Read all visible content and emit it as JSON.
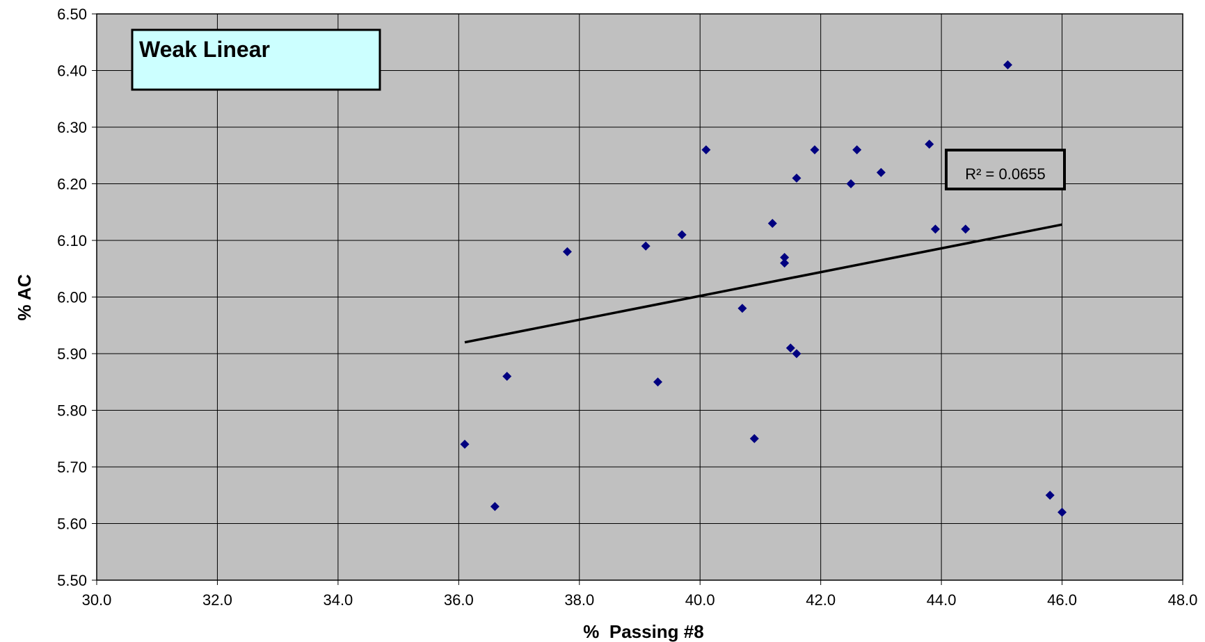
{
  "chart_data": {
    "type": "scatter",
    "title": "",
    "xlabel": "%  Passing #8",
    "ylabel": "% AC",
    "xlim": [
      30.0,
      48.0
    ],
    "ylim": [
      5.5,
      6.5
    ],
    "x_tick_step": 2.0,
    "y_tick_step": 0.1,
    "x_tick_decimals": 1,
    "y_tick_decimals": 2,
    "grid": true,
    "plot_background": "#c0c0c0",
    "marker_color": "#000080",
    "trendline_color": "#000000",
    "annotations": {
      "label": "Weak Linear",
      "label_background": "#ccffff",
      "r_squared": "R² = 0.0655"
    },
    "trendline": {
      "x": [
        36.1,
        46.0
      ],
      "y": [
        5.92,
        6.128
      ]
    },
    "points": [
      {
        "x": 36.1,
        "y": 5.74
      },
      {
        "x": 36.6,
        "y": 5.63
      },
      {
        "x": 36.8,
        "y": 5.86
      },
      {
        "x": 37.8,
        "y": 6.08
      },
      {
        "x": 39.1,
        "y": 6.09
      },
      {
        "x": 39.3,
        "y": 5.85
      },
      {
        "x": 39.7,
        "y": 6.11
      },
      {
        "x": 40.1,
        "y": 6.26
      },
      {
        "x": 40.7,
        "y": 5.98
      },
      {
        "x": 40.9,
        "y": 5.75
      },
      {
        "x": 41.2,
        "y": 6.13
      },
      {
        "x": 41.4,
        "y": 6.07
      },
      {
        "x": 41.4,
        "y": 6.06
      },
      {
        "x": 41.5,
        "y": 5.91
      },
      {
        "x": 41.6,
        "y": 5.9
      },
      {
        "x": 41.6,
        "y": 6.21
      },
      {
        "x": 41.9,
        "y": 6.26
      },
      {
        "x": 42.5,
        "y": 6.2
      },
      {
        "x": 42.6,
        "y": 6.26
      },
      {
        "x": 43.0,
        "y": 6.22
      },
      {
        "x": 43.8,
        "y": 6.27
      },
      {
        "x": 43.9,
        "y": 6.12
      },
      {
        "x": 44.4,
        "y": 6.12
      },
      {
        "x": 45.1,
        "y": 6.41
      },
      {
        "x": 45.8,
        "y": 5.65
      },
      {
        "x": 46.0,
        "y": 5.62
      }
    ]
  }
}
